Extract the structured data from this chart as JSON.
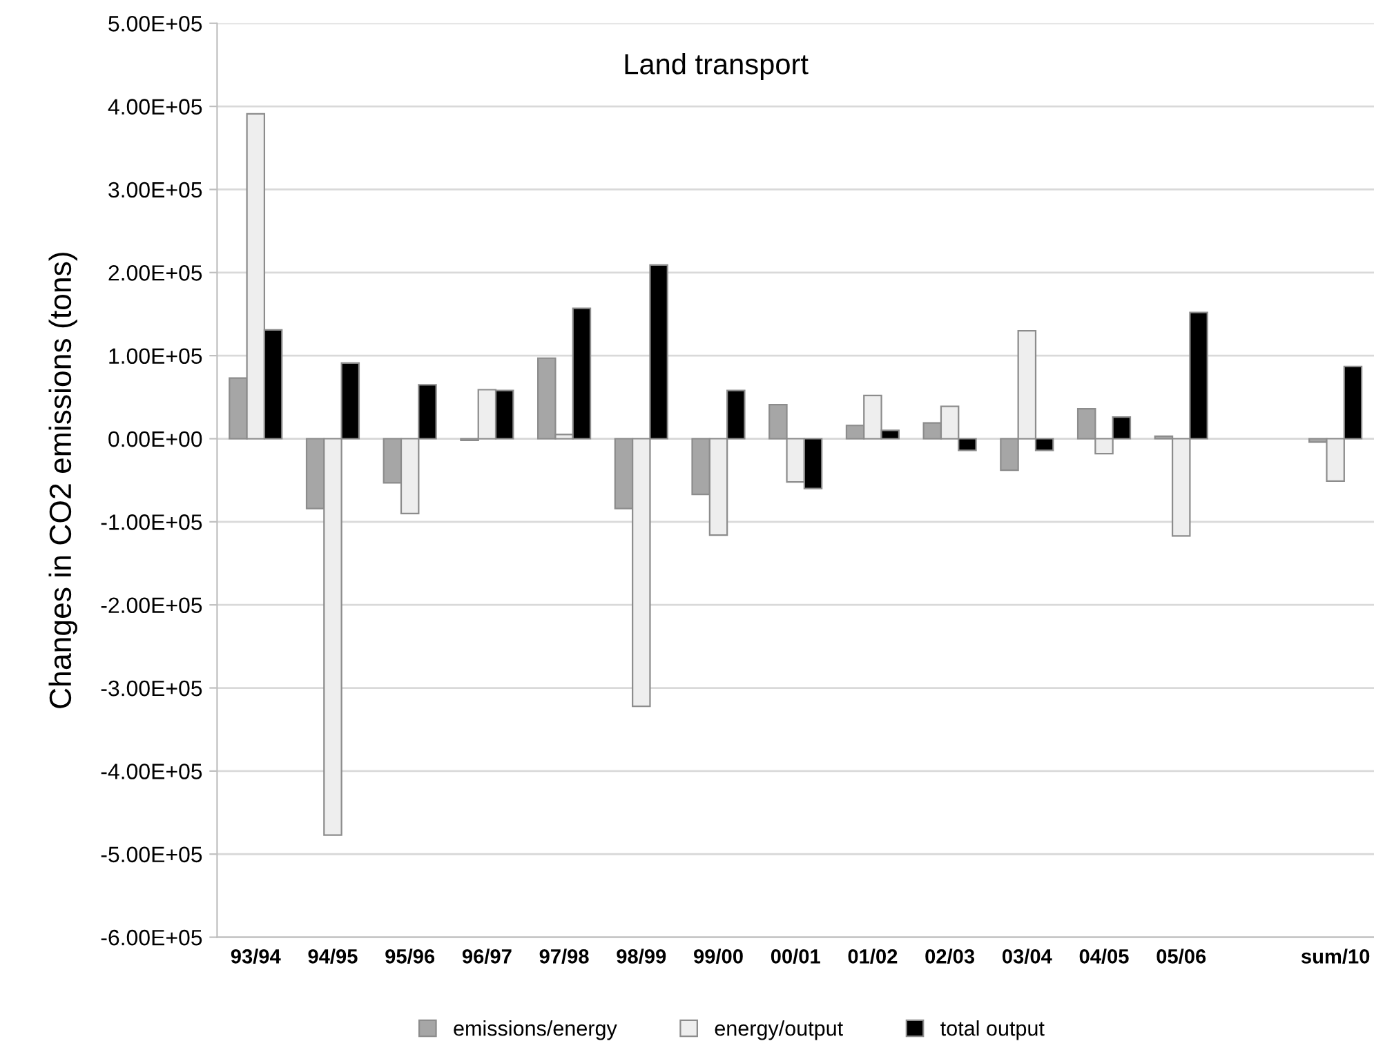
{
  "chart_data": {
    "type": "bar",
    "title": "Land transport",
    "ylabel": "Changes in CO2 emissions (tons)",
    "categories": [
      "93/94",
      "94/95",
      "95/96",
      "96/97",
      "97/98",
      "98/99",
      "99/00",
      "00/01",
      "01/02",
      "02/03",
      "03/04",
      "04/05",
      "05/06",
      null,
      "sum/10"
    ],
    "series": [
      {
        "name": "emissions/energy",
        "color": "#a6a6a6",
        "values": [
          73000,
          -84000,
          -53000,
          -2000,
          97000,
          -84000,
          -67000,
          41000,
          16000,
          19000,
          -38000,
          36000,
          3000,
          null,
          -4000
        ]
      },
      {
        "name": "energy/output",
        "color": "#eeeeee",
        "values": [
          391000,
          -477000,
          -90000,
          59000,
          5000,
          -322000,
          -116000,
          -52000,
          52000,
          39000,
          130000,
          -18000,
          -117000,
          null,
          -51000
        ]
      },
      {
        "name": "total output",
        "color": "#000000",
        "values": [
          131000,
          91000,
          65000,
          58000,
          157000,
          209000,
          58000,
          -60000,
          10000,
          -14000,
          -14000,
          26000,
          152000,
          null,
          87000
        ]
      }
    ],
    "ylim": [
      -600000,
      500000
    ],
    "yticks": [
      {
        "value": 500000,
        "label": "5.00E+05"
      },
      {
        "value": 400000,
        "label": "4.00E+05"
      },
      {
        "value": 300000,
        "label": "3.00E+05"
      },
      {
        "value": 200000,
        "label": "2.00E+05"
      },
      {
        "value": 100000,
        "label": "1.00E+05"
      },
      {
        "value": 0,
        "label": "0.00E+00"
      },
      {
        "value": -100000,
        "label": "-1.00E+05"
      },
      {
        "value": -200000,
        "label": "-2.00E+05"
      },
      {
        "value": -300000,
        "label": "-3.00E+05"
      },
      {
        "value": -400000,
        "label": "-4.00E+05"
      },
      {
        "value": -500000,
        "label": "-5.00E+05"
      },
      {
        "value": -600000,
        "label": "-6.00E+05"
      }
    ],
    "grid": "y",
    "legend": "bottom"
  }
}
